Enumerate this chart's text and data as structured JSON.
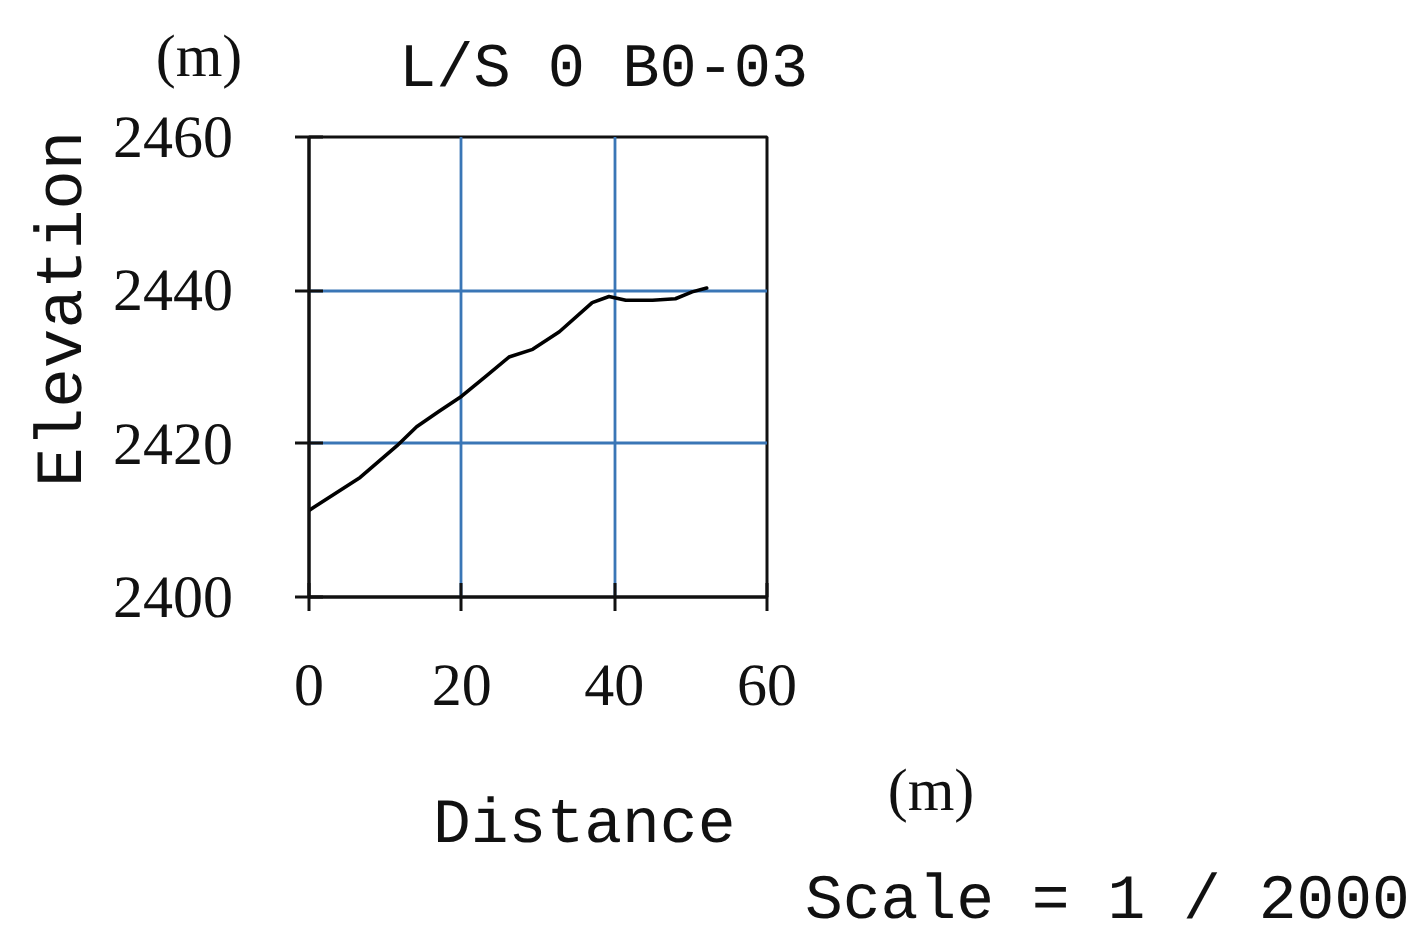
{
  "chart_data": {
    "type": "line",
    "title": "L/S 0 B0-03",
    "xlabel": "Distance",
    "ylabel": "Elevation",
    "annotations": [
      "(m)",
      "(m)",
      "Scale = 1 / 2000"
    ],
    "x": [
      0,
      6.7,
      11.5,
      14.1,
      17,
      20,
      23.2,
      26.2,
      29.3,
      32.8,
      37.1,
      39.3,
      41.5,
      45,
      48,
      50.2,
      52.1
    ],
    "series": [
      {
        "color": "#000000",
        "values": [
          2411.3,
          2415.6,
          2419.7,
          2422.2,
          2424.2,
          2426.2,
          2428.8,
          2431.3,
          2432.3,
          2434.6,
          2438.4,
          2439.2,
          2438.7,
          2438.7,
          2438.9,
          2439.8,
          2440.3
        ]
      }
    ],
    "xlim": [
      0,
      60
    ],
    "ylim": [
      2400,
      2460
    ],
    "xticks": [
      0,
      20,
      40,
      60
    ],
    "yticks": [
      2400,
      2420,
      2440,
      2460
    ],
    "grid": true,
    "line_style": "solid"
  }
}
